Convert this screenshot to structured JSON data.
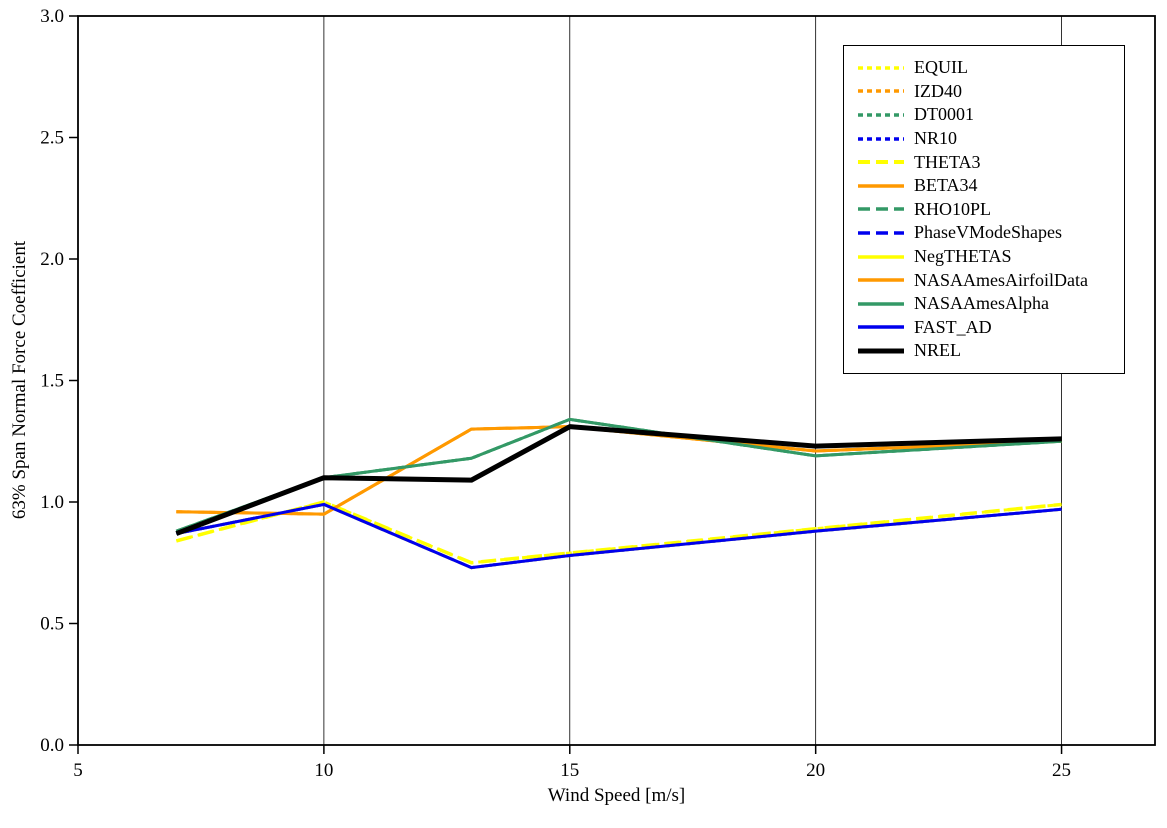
{
  "chart_data": {
    "type": "line",
    "title": "",
    "xlabel": "Wind Speed [m/s]",
    "ylabel": "63% Span Normal Force Coefficient",
    "xlim": [
      5,
      26.9
    ],
    "ylim": [
      0,
      3
    ],
    "xticks": [
      {
        "value": 5,
        "label": "5"
      },
      {
        "value": 10,
        "label": "10"
      },
      {
        "value": 15,
        "label": "15"
      },
      {
        "value": 20,
        "label": "20"
      },
      {
        "value": 25,
        "label": "25"
      }
    ],
    "yticks": [
      {
        "value": 0.0,
        "label": "0.0"
      },
      {
        "value": 0.5,
        "label": "0.5"
      },
      {
        "value": 1.0,
        "label": "1.0"
      },
      {
        "value": 1.5,
        "label": "1.5"
      },
      {
        "value": 2.0,
        "label": "2.0"
      },
      {
        "value": 2.5,
        "label": "2.5"
      },
      {
        "value": 3.0,
        "label": "3.0"
      }
    ],
    "grid": "vertical-only",
    "legend_position": "top-right",
    "colors": {
      "yellow": "#FFFF00",
      "orange": "#FF9900",
      "green": "#339966",
      "blue": "#0000EE",
      "black": "#000000"
    },
    "x": [
      7,
      10,
      13,
      15,
      20,
      25
    ],
    "series": [
      {
        "name": "EQUIL",
        "color": "#FFFF00",
        "dash": "short",
        "width": 3,
        "values": [
          0.84,
          1.0,
          0.75,
          0.79,
          0.89,
          0.99
        ]
      },
      {
        "name": "IZD40",
        "color": "#FF9900",
        "dash": "short",
        "width": 3,
        "values": [
          0.96,
          0.95,
          1.3,
          1.31,
          1.21,
          1.25
        ]
      },
      {
        "name": "DT0001",
        "color": "#339966",
        "dash": "short",
        "width": 3,
        "values": [
          0.88,
          1.1,
          1.18,
          1.34,
          1.19,
          1.25
        ]
      },
      {
        "name": "NR10",
        "color": "#0000EE",
        "dash": "short",
        "width": 3,
        "values": [
          0.87,
          0.99,
          0.73,
          0.78,
          0.88,
          0.97
        ]
      },
      {
        "name": "THETA3",
        "color": "#FFFF00",
        "dash": "long",
        "width": 3.5,
        "values": [
          0.84,
          1.0,
          0.75,
          0.79,
          0.89,
          0.99
        ]
      },
      {
        "name": "BETA34",
        "color": "#FF9900",
        "dash": "solid",
        "width": 3,
        "values": [
          0.96,
          0.95,
          1.3,
          1.31,
          1.21,
          1.25
        ]
      },
      {
        "name": "RHO10PL",
        "color": "#339966",
        "dash": "long",
        "width": 3,
        "values": [
          0.88,
          1.1,
          1.18,
          1.34,
          1.19,
          1.25
        ]
      },
      {
        "name": "PhaseVModeShapes",
        "color": "#0000EE",
        "dash": "long",
        "width": 3,
        "values": [
          0.87,
          0.99,
          0.73,
          0.78,
          0.88,
          0.97
        ]
      },
      {
        "name": "NegTHETAS",
        "color": "#FFFF00",
        "dash": "solid",
        "width": 3,
        "values": [
          0.87,
          0.99,
          0.73,
          0.78,
          0.88,
          0.97
        ]
      },
      {
        "name": "NASAAmesAirfoilData",
        "color": "#FF9900",
        "dash": "solid",
        "width": 3,
        "values": [
          0.96,
          0.95,
          1.3,
          1.31,
          1.21,
          1.25
        ]
      },
      {
        "name": "NASAAmesAlpha",
        "color": "#339966",
        "dash": "solid",
        "width": 3,
        "values": [
          0.88,
          1.1,
          1.18,
          1.34,
          1.19,
          1.25
        ]
      },
      {
        "name": "FAST_AD",
        "color": "#0000EE",
        "dash": "solid",
        "width": 3,
        "values": [
          0.87,
          0.99,
          0.73,
          0.78,
          0.88,
          0.97
        ]
      },
      {
        "name": "NREL",
        "color": "#000000",
        "dash": "solid",
        "width": 5,
        "values": [
          0.87,
          1.1,
          1.09,
          1.31,
          1.23,
          1.26
        ]
      }
    ]
  }
}
